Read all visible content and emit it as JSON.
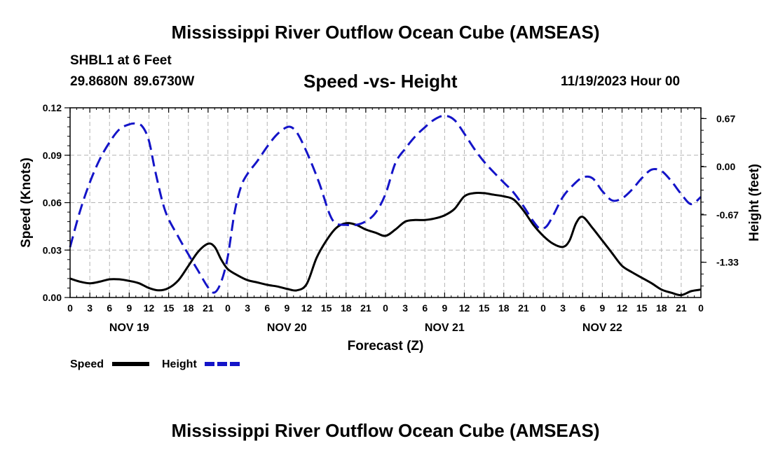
{
  "header": {
    "title": "Mississippi River Outflow Ocean Cube (AMSEAS)",
    "station": "SHBL1 at 6 Feet",
    "coordinates": "29.8680N  89.6730W",
    "chart_subtitle": "Speed -vs- Height",
    "datetime": "11/19/2023 Hour 00"
  },
  "footer": {
    "title": "Mississippi River Outflow Ocean Cube (AMSEAS)"
  },
  "colors": {
    "speed_line": "#000000",
    "height_line": "#1414c8",
    "grid": "#b4b4b4"
  },
  "chart_data": {
    "type": "line",
    "title": "Speed -vs- Height",
    "xlabel": "Forecast (Z)",
    "ylabel": "Speed (Knots)",
    "y2label": "Height (feet)",
    "x_hours_range": [
      0,
      96
    ],
    "x_tick_step_hours": 3,
    "x_tick_labels": [
      "0",
      "3",
      "6",
      "9",
      "12",
      "15",
      "18",
      "21",
      "0",
      "3",
      "6",
      "9",
      "12",
      "15",
      "18",
      "21",
      "0",
      "3",
      "6",
      "9",
      "12",
      "15",
      "18",
      "21",
      "0",
      "3",
      "6",
      "9",
      "12",
      "15",
      "18",
      "21",
      "0"
    ],
    "day_labels": [
      {
        "label": "NOV 19",
        "hour": 9
      },
      {
        "label": "NOV 20",
        "hour": 33
      },
      {
        "label": "NOV 21",
        "hour": 57
      },
      {
        "label": "NOV 22",
        "hour": 81
      }
    ],
    "ylim": [
      0,
      0.12
    ],
    "y_ticks": [
      0.0,
      0.03,
      0.06,
      0.09,
      0.12
    ],
    "y_tick_labels": [
      "0.00",
      "0.03",
      "0.06",
      "0.09",
      "0.12"
    ],
    "y2lim": [
      -1.82,
      0.82
    ],
    "y2_ticks": [
      0.67,
      0.0,
      -0.67,
      -1.33
    ],
    "y2_tick_labels": [
      "0.67",
      "0.00",
      "-0.67",
      "-1.33"
    ],
    "grid": true,
    "legend_position": "bottom-left",
    "series": [
      {
        "name": "Speed",
        "axis": "left",
        "style": "solid",
        "points": [
          [
            0,
            0.012
          ],
          [
            1.5,
            0.01
          ],
          [
            3,
            0.009
          ],
          [
            4.5,
            0.01
          ],
          [
            6,
            0.0115
          ],
          [
            7.5,
            0.0115
          ],
          [
            9,
            0.0105
          ],
          [
            10.5,
            0.009
          ],
          [
            12,
            0.006
          ],
          [
            13.5,
            0.0045
          ],
          [
            15,
            0.006
          ],
          [
            16.5,
            0.011
          ],
          [
            18,
            0.02
          ],
          [
            19.5,
            0.029
          ],
          [
            21,
            0.034
          ],
          [
            22,
            0.032
          ],
          [
            23,
            0.024
          ],
          [
            24,
            0.018
          ],
          [
            25.5,
            0.014
          ],
          [
            27,
            0.011
          ],
          [
            28.5,
            0.0095
          ],
          [
            30,
            0.008
          ],
          [
            31.5,
            0.007
          ],
          [
            33,
            0.0055
          ],
          [
            34.5,
            0.0045
          ],
          [
            36,
            0.0085
          ],
          [
            37.5,
            0.025
          ],
          [
            39,
            0.036
          ],
          [
            40.5,
            0.044
          ],
          [
            42,
            0.047
          ],
          [
            43.5,
            0.046
          ],
          [
            45,
            0.043
          ],
          [
            46.5,
            0.041
          ],
          [
            48,
            0.039
          ],
          [
            49.5,
            0.043
          ],
          [
            51,
            0.048
          ],
          [
            52.5,
            0.049
          ],
          [
            54,
            0.049
          ],
          [
            55.5,
            0.05
          ],
          [
            57,
            0.052
          ],
          [
            58.5,
            0.056
          ],
          [
            60,
            0.064
          ],
          [
            61.5,
            0.066
          ],
          [
            63,
            0.066
          ],
          [
            64.5,
            0.065
          ],
          [
            66,
            0.064
          ],
          [
            67.5,
            0.062
          ],
          [
            69,
            0.055
          ],
          [
            70.5,
            0.046
          ],
          [
            72,
            0.039
          ],
          [
            73.5,
            0.034
          ],
          [
            75,
            0.032
          ],
          [
            76,
            0.036
          ],
          [
            77,
            0.047
          ],
          [
            78,
            0.051
          ],
          [
            79.5,
            0.044
          ],
          [
            81,
            0.036
          ],
          [
            82.5,
            0.028
          ],
          [
            84,
            0.02
          ],
          [
            85.5,
            0.016
          ],
          [
            87,
            0.0125
          ],
          [
            88.5,
            0.009
          ],
          [
            90,
            0.005
          ],
          [
            91.5,
            0.003
          ],
          [
            93,
            0.0015
          ],
          [
            94.5,
            0.004
          ],
          [
            96,
            0.005
          ]
        ]
      },
      {
        "name": "Height",
        "axis": "right",
        "style": "dashed",
        "points": [
          [
            0,
            -1.12
          ],
          [
            1.5,
            -0.62
          ],
          [
            3,
            -0.22
          ],
          [
            4.5,
            0.1
          ],
          [
            6,
            0.34
          ],
          [
            7.5,
            0.52
          ],
          [
            9,
            0.59
          ],
          [
            10,
            0.6
          ],
          [
            11,
            0.56
          ],
          [
            12,
            0.36
          ],
          [
            13,
            -0.08
          ],
          [
            14.5,
            -0.62
          ],
          [
            16.5,
            -0.98
          ],
          [
            18,
            -1.22
          ],
          [
            19.5,
            -1.45
          ],
          [
            21,
            -1.68
          ],
          [
            22,
            -1.75
          ],
          [
            23,
            -1.6
          ],
          [
            24,
            -1.25
          ],
          [
            25,
            -0.65
          ],
          [
            26,
            -0.28
          ],
          [
            27,
            -0.1
          ],
          [
            28.5,
            0.08
          ],
          [
            30,
            0.28
          ],
          [
            31.5,
            0.45
          ],
          [
            33,
            0.55
          ],
          [
            34,
            0.53
          ],
          [
            35,
            0.4
          ],
          [
            36.5,
            0.1
          ],
          [
            38,
            -0.25
          ],
          [
            39.5,
            -0.66
          ],
          [
            40.5,
            -0.79
          ],
          [
            42,
            -0.81
          ],
          [
            43.5,
            -0.81
          ],
          [
            45,
            -0.76
          ],
          [
            46.5,
            -0.64
          ],
          [
            48,
            -0.38
          ],
          [
            49.5,
            0.05
          ],
          [
            51,
            0.25
          ],
          [
            52.5,
            0.42
          ],
          [
            54,
            0.55
          ],
          [
            55.5,
            0.66
          ],
          [
            57,
            0.71
          ],
          [
            58.5,
            0.65
          ],
          [
            60,
            0.46
          ],
          [
            61.5,
            0.25
          ],
          [
            63,
            0.07
          ],
          [
            64.5,
            -0.08
          ],
          [
            66,
            -0.22
          ],
          [
            67.5,
            -0.36
          ],
          [
            69,
            -0.55
          ],
          [
            70.5,
            -0.76
          ],
          [
            71.5,
            -0.86
          ],
          [
            72.5,
            -0.83
          ],
          [
            73.5,
            -0.68
          ],
          [
            75,
            -0.42
          ],
          [
            76.5,
            -0.26
          ],
          [
            78,
            -0.15
          ],
          [
            79.5,
            -0.16
          ],
          [
            81,
            -0.34
          ],
          [
            82.5,
            -0.47
          ],
          [
            84,
            -0.44
          ],
          [
            85.5,
            -0.32
          ],
          [
            87,
            -0.16
          ],
          [
            88.5,
            -0.04
          ],
          [
            90,
            -0.06
          ],
          [
            91.5,
            -0.2
          ],
          [
            93,
            -0.38
          ],
          [
            94.5,
            -0.52
          ],
          [
            96,
            -0.42
          ]
        ]
      }
    ]
  },
  "legend": {
    "speed_label": "Speed",
    "height_label": "Height"
  }
}
